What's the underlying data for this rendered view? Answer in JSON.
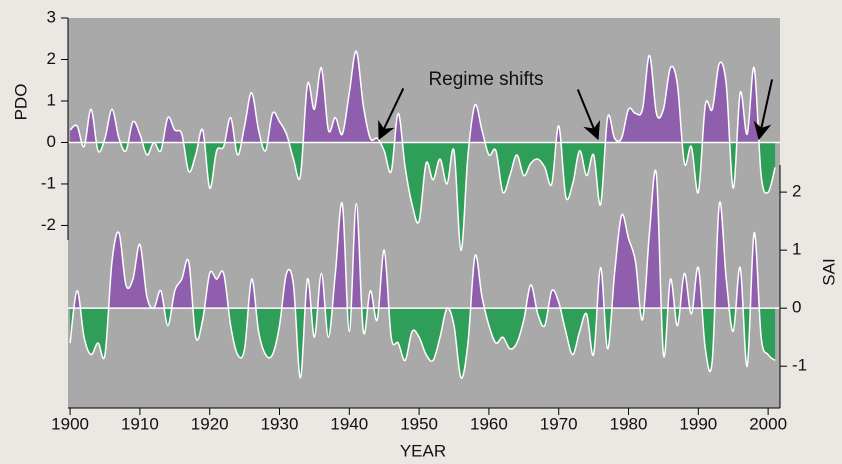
{
  "chart_data": {
    "type": "area",
    "xlabel": "YEAR",
    "ylabel": "PDO",
    "y2label": "SAI",
    "x": [
      1900,
      1901,
      1902,
      1903,
      1904,
      1905,
      1906,
      1907,
      1908,
      1909,
      1910,
      1911,
      1912,
      1913,
      1914,
      1915,
      1916,
      1917,
      1918,
      1919,
      1920,
      1921,
      1922,
      1923,
      1924,
      1925,
      1926,
      1927,
      1928,
      1929,
      1930,
      1931,
      1932,
      1933,
      1934,
      1935,
      1936,
      1937,
      1938,
      1939,
      1940,
      1941,
      1942,
      1943,
      1944,
      1945,
      1946,
      1947,
      1948,
      1949,
      1950,
      1951,
      1952,
      1953,
      1954,
      1955,
      1956,
      1957,
      1958,
      1959,
      1960,
      1961,
      1962,
      1963,
      1964,
      1965,
      1966,
      1967,
      1968,
      1969,
      1970,
      1971,
      1972,
      1973,
      1974,
      1975,
      1976,
      1977,
      1978,
      1979,
      1980,
      1981,
      1982,
      1983,
      1984,
      1985,
      1986,
      1987,
      1988,
      1989,
      1990,
      1991,
      1992,
      1993,
      1994,
      1995,
      1996,
      1997,
      1998,
      1999,
      2000,
      2001
    ],
    "xlim": [
      1899.7,
      2001.7
    ],
    "xticks": [
      1900,
      1910,
      1920,
      1930,
      1940,
      1950,
      1960,
      1970,
      1980,
      1990,
      2000
    ],
    "ylim": [
      -6.4,
      3
    ],
    "yticks": [
      3,
      2,
      1,
      0,
      -1,
      -2
    ],
    "y2lim": [
      -1.72,
      5
    ],
    "y2ticks": [
      2,
      1,
      0,
      -1
    ],
    "background": "#a9a9a9",
    "line_color": "#ffffff",
    "series": [
      {
        "positive_color": "#8f5fae",
        "negative_color": "#2f9e58",
        "values": [
          0.3,
          0.4,
          -0.1,
          0.8,
          -0.2,
          0.1,
          0.8,
          0.1,
          -0.2,
          0.5,
          0.2,
          -0.3,
          0.0,
          -0.2,
          0.6,
          0.3,
          0.2,
          -0.7,
          -0.3,
          0.3,
          -1.1,
          -0.2,
          -0.1,
          0.6,
          -0.3,
          0.4,
          1.2,
          0.3,
          -0.2,
          0.7,
          0.5,
          0.2,
          -0.4,
          -0.8,
          1.4,
          0.8,
          1.8,
          0.3,
          0.6,
          0.2,
          1.2,
          2.2,
          0.9,
          0.1,
          0.1,
          -0.2,
          -0.7,
          0.7,
          -0.6,
          -1.5,
          -1.9,
          -0.5,
          -0.9,
          -0.4,
          -1.0,
          -0.2,
          -2.6,
          -0.3,
          0.9,
          0.3,
          -0.3,
          -0.2,
          -1.2,
          -0.8,
          -0.3,
          -0.8,
          -0.5,
          -0.4,
          -0.6,
          -1.0,
          0.4,
          -1.3,
          -1.0,
          -0.2,
          -0.8,
          -0.3,
          -1.5,
          0.6,
          0.1,
          0.1,
          0.8,
          0.7,
          0.8,
          2.1,
          0.7,
          0.8,
          1.8,
          1.4,
          -0.5,
          -0.1,
          -1.2,
          0.9,
          0.8,
          1.9,
          1.4,
          -1.1,
          1.2,
          0.2,
          1.8,
          -0.8,
          -1.2,
          -0.6
        ]
      },
      {
        "axis": "y2",
        "positive_color": "#8f5fae",
        "negative_color": "#2f9e58",
        "values": [
          -0.6,
          0.3,
          -0.5,
          -0.8,
          -0.6,
          -0.8,
          0.8,
          1.3,
          0.4,
          0.5,
          1.1,
          0.2,
          0.0,
          0.3,
          -0.3,
          0.3,
          0.5,
          0.8,
          -0.5,
          -0.2,
          0.6,
          0.5,
          0.6,
          -0.3,
          -0.8,
          -0.7,
          0.5,
          -0.4,
          -0.8,
          -0.8,
          -0.3,
          0.6,
          0.4,
          -1.2,
          0.5,
          -0.5,
          0.6,
          -0.5,
          0.6,
          1.8,
          -0.4,
          1.8,
          -0.4,
          0.3,
          -0.2,
          1.0,
          -0.5,
          -0.6,
          -0.9,
          -0.4,
          -0.5,
          -0.8,
          -0.9,
          -0.5,
          0.0,
          -0.3,
          -1.2,
          -0.6,
          0.9,
          0.2,
          -0.3,
          -0.6,
          -0.5,
          -0.7,
          -0.6,
          -0.2,
          0.4,
          -0.1,
          -0.3,
          0.3,
          0.1,
          -0.4,
          -0.8,
          -0.4,
          -0.1,
          -0.8,
          0.7,
          -0.7,
          0.6,
          1.6,
          1.2,
          0.8,
          -0.2,
          1.3,
          2.3,
          -0.8,
          0.5,
          -0.3,
          0.6,
          -0.1,
          0.7,
          -0.7,
          -0.9,
          1.8,
          0.5,
          -0.4,
          0.7,
          -1.0,
          1.3,
          -0.5,
          -0.8,
          -0.9
        ]
      }
    ],
    "annotation": {
      "text": "Regime shifts",
      "x": [
        1944.3,
        1975.6,
        1998.7
      ]
    }
  }
}
